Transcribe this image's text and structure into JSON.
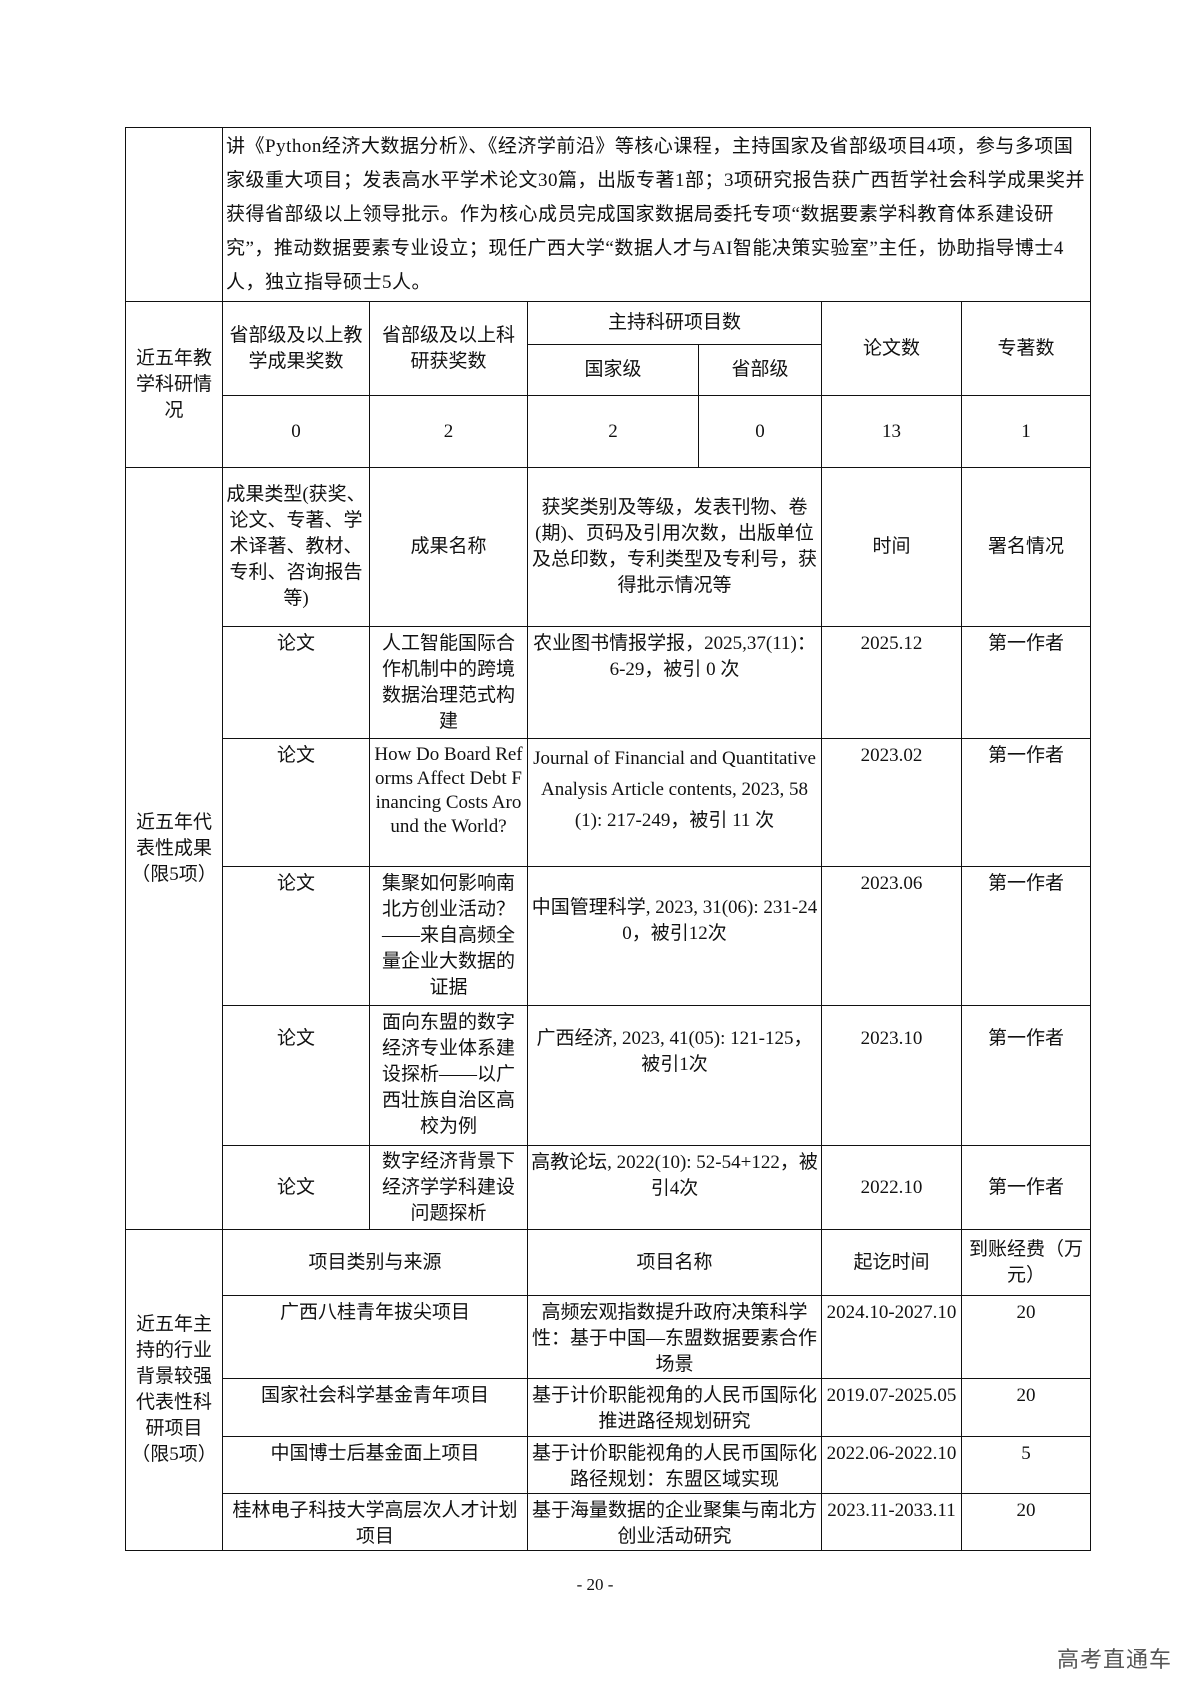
{
  "intro_text": "讲《Python经济大数据分析》、《经济学前沿》等核心课程，主持国家及省部级项目4项，参与多项国家级重大项目；发表高水平学术论文30篇，出版专著1部；3项研究报告获广西哲学社会科学成果奖并获得省部级以上领导批示。作为核心成员完成国家数据局委托专项“数据要素学科教育体系建设研究”，推动数据要素专业设立；现任广西大学“数据人才与AI智能决策实验室”主任，协助指导博士4人，独立指导硕士5人。",
  "stats": {
    "section_label": "近五年教学科研情况",
    "headers": {
      "teaching_awards": "省部级及以上教学成果奖数",
      "research_awards": "省部级及以上科研获奖数",
      "projects": "主持科研项目数",
      "national": "国家级",
      "provincial": "省部级",
      "papers": "论文数",
      "monographs": "专著数"
    },
    "values": {
      "teaching_awards": "0",
      "research_awards": "2",
      "national": "2",
      "provincial": "0",
      "papers": "13",
      "monographs": "1"
    }
  },
  "achievements": {
    "section_label": "近五年代表性成果（限5项）",
    "headers": {
      "type": "成果类型(获奖、论文、专著、学术译著、教材、专利、咨询报告等)",
      "name": "成果名称",
      "details": "获奖类别及等级，发表刊物、卷(期)、页码及引用次数，出版单位及总印数，专利类型及专利号，获得批示情况等",
      "time": "时间",
      "authorship": "署名情况"
    },
    "rows": [
      {
        "type": "论文",
        "name": "人工智能国际合作机制中的跨境数据治理范式构建",
        "details": "农业图书情报学报，2025,37(11)：6-29，被引 0 次",
        "time": "2025.12",
        "authorship": "第一作者"
      },
      {
        "type": "论文",
        "name": "How Do Board Reforms Affect Debt Financing Costs Around the World?",
        "details": "Journal of Financial and Quantitative Analysis Article contents, 2023, 58(1): 217-249，被引 11 次",
        "time": "2023.02",
        "authorship": "第一作者"
      },
      {
        "type": "论文",
        "name": "集聚如何影响南北方创业活动？——来自高频全量企业大数据的证据",
        "details": "中国管理科学, 2023, 31(06): 231-240，被引12次",
        "time": "2023.06",
        "authorship": "第一作者"
      },
      {
        "type": "论文",
        "name": "面向东盟的数字经济专业体系建设探析——以广西壮族自治区高校为例",
        "details": "广西经济, 2023, 41(05): 121-125，被引1次",
        "time": "2023.10",
        "authorship": "第一作者"
      },
      {
        "type": "论文",
        "name": "数字经济背景下经济学学科建设问题探析",
        "details": "高教论坛, 2022(10): 52-54+122，被引4次",
        "time": "2022.10",
        "authorship": "第一作者"
      }
    ]
  },
  "projects": {
    "section_label": "近五年主持的行业背景较强代表性科研项目（限5项）",
    "headers": {
      "source": "项目类别与来源",
      "name": "项目名称",
      "period": "起讫时间",
      "funding": "到账经费（万元）"
    },
    "rows": [
      {
        "source": "广西八桂青年拔尖项目",
        "name": "高频宏观指数提升政府决策科学性：基于中国—东盟数据要素合作场景",
        "period": "2024.10-2027.10",
        "funding": "20"
      },
      {
        "source": "国家社会科学基金青年项目",
        "name": "基于计价职能视角的人民币国际化推进路径规划研究",
        "period": "2019.07-2025.05",
        "funding": "20"
      },
      {
        "source": "中国博士后基金面上项目",
        "name": "基于计价职能视角的人民币国际化路径规划：东盟区域实现",
        "period": "2022.06-2022.10",
        "funding": "5"
      },
      {
        "source": "桂林电子科技大学高层次人才计划项目",
        "name": "基于海量数据的企业聚集与南北方创业活动研究",
        "period": "2023.11-2033.11",
        "funding": "20"
      }
    ]
  },
  "page_number": "- 20 -",
  "watermark": "高考直通车"
}
